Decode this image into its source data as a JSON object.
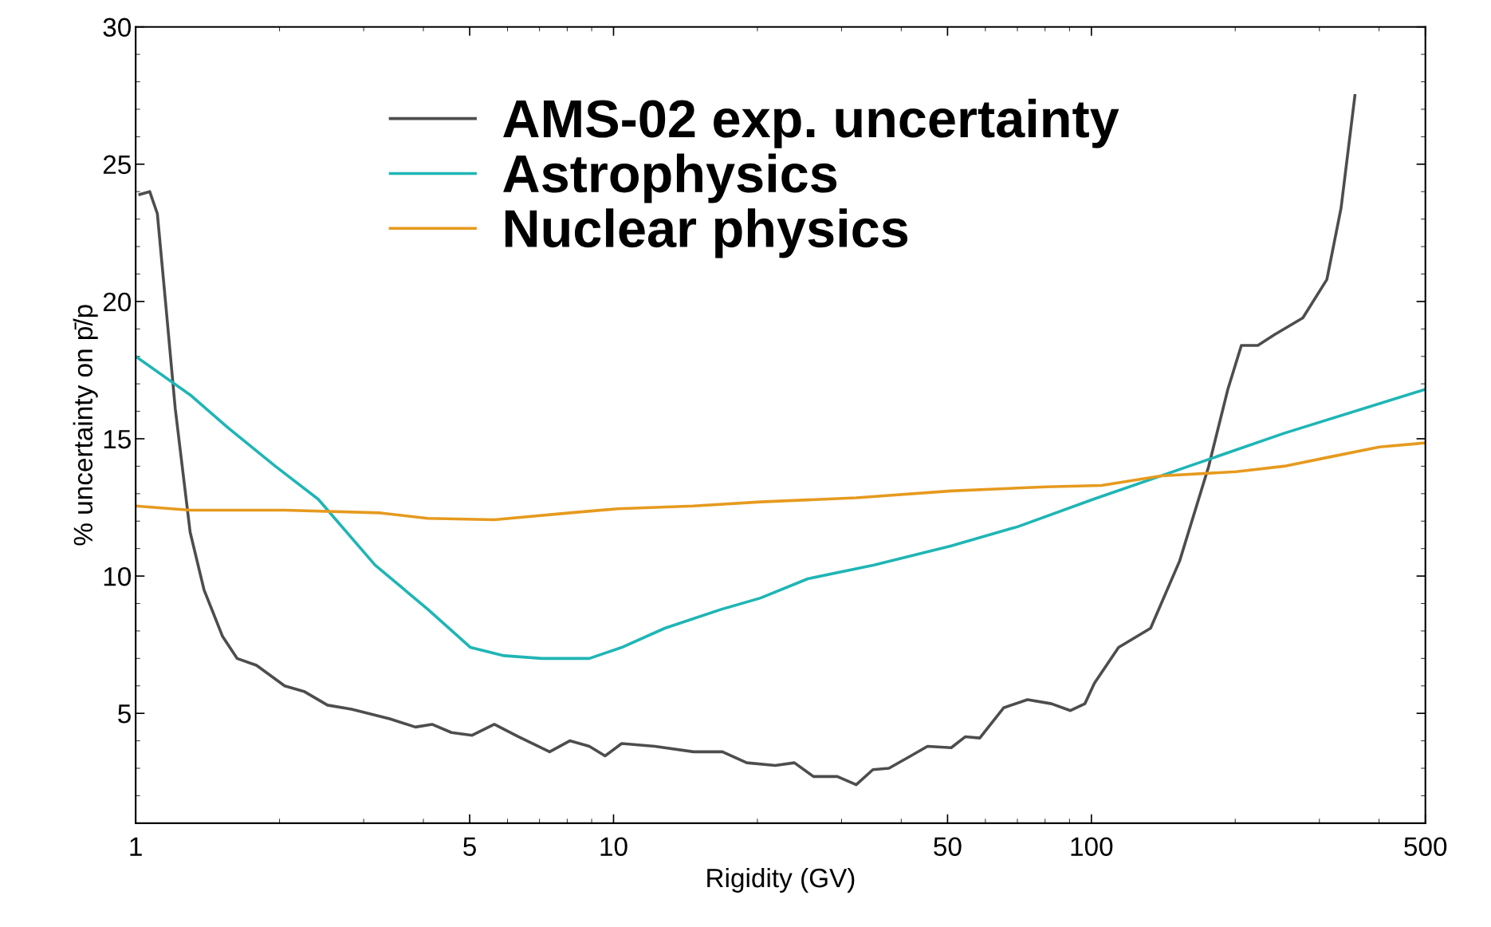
{
  "chart_data": {
    "type": "line",
    "xlabel": "Rigidity (GV)",
    "ylabel": "% uncertainty on p̄/p",
    "log": "x",
    "xlim": [
      1,
      500
    ],
    "xticks": [
      1,
      5,
      10,
      50,
      100,
      500
    ],
    "ylim": [
      1,
      30
    ],
    "yticks": [
      5,
      10,
      15,
      20,
      25,
      30
    ],
    "grid": false,
    "legend": "top",
    "marker": "none",
    "line_style": "solid",
    "series": [
      {
        "name": "AMS-02 exp. uncertainty",
        "color": "#4d4d4d",
        "x": [
          1.02,
          1.07,
          1.11,
          1.16,
          1.21,
          1.3,
          1.39,
          1.52,
          1.63,
          1.79,
          2.05,
          2.25,
          2.52,
          2.83,
          3.4,
          3.85,
          4.17,
          4.58,
          5.06,
          5.63,
          6.32,
          7.35,
          8.1,
          8.9,
          9.6,
          10.4,
          12.2,
          14.7,
          16.9,
          19.0,
          21.8,
          23.9,
          26.2,
          29.4,
          32.2,
          34.9,
          37.7,
          41.4,
          45.4,
          50.9,
          54.5,
          58.4,
          65.5,
          73.5,
          82.5,
          90.4,
          96.9,
          101.5,
          114,
          133,
          153,
          176,
          193,
          206,
          223,
          242,
          277,
          311,
          333,
          356
        ],
        "values": [
          23.9,
          24.0,
          23.2,
          19.6,
          16.1,
          11.6,
          9.5,
          7.8,
          7.0,
          6.75,
          6.0,
          5.8,
          5.3,
          5.15,
          4.8,
          4.5,
          4.6,
          4.3,
          4.2,
          4.6,
          4.15,
          3.6,
          4.0,
          3.8,
          3.45,
          3.9,
          3.8,
          3.6,
          3.6,
          3.2,
          3.1,
          3.2,
          2.7,
          2.7,
          2.4,
          2.95,
          3.0,
          3.4,
          3.8,
          3.75,
          4.15,
          4.1,
          5.2,
          5.5,
          5.35,
          5.1,
          5.35,
          6.1,
          7.4,
          8.1,
          10.55,
          14.0,
          16.8,
          18.4,
          18.4,
          18.8,
          19.4,
          20.8,
          23.4,
          27.5
        ]
      },
      {
        "name": "Astrophysics",
        "color": "#1fb5b5",
        "x": [
          1,
          1.3,
          1.56,
          1.96,
          2.41,
          3.17,
          4.08,
          5.02,
          5.9,
          7.08,
          8.9,
          10.4,
          12.8,
          16.9,
          20.3,
          25.5,
          35.1,
          50.9,
          70.2,
          101,
          160,
          253,
          500
        ],
        "values": [
          18.0,
          16.6,
          15.4,
          14.0,
          12.8,
          10.4,
          8.8,
          7.4,
          7.1,
          7.0,
          7.0,
          7.4,
          8.1,
          8.8,
          9.2,
          9.9,
          10.4,
          11.1,
          11.8,
          12.8,
          14.0,
          15.2,
          16.8
        ]
      },
      {
        "name": "Nuclear physics",
        "color": "#e69a1e",
        "x": [
          1,
          1.3,
          2.05,
          3.25,
          4.08,
          5.63,
          8.1,
          10.2,
          14.7,
          20.3,
          32.2,
          50.9,
          80.5,
          105,
          140,
          201,
          253,
          318,
          401,
          500
        ],
        "values": [
          12.55,
          12.4,
          12.4,
          12.3,
          12.1,
          12.05,
          12.3,
          12.45,
          12.55,
          12.7,
          12.85,
          13.1,
          13.25,
          13.3,
          13.65,
          13.8,
          14.0,
          14.35,
          14.7,
          14.85
        ]
      }
    ]
  }
}
